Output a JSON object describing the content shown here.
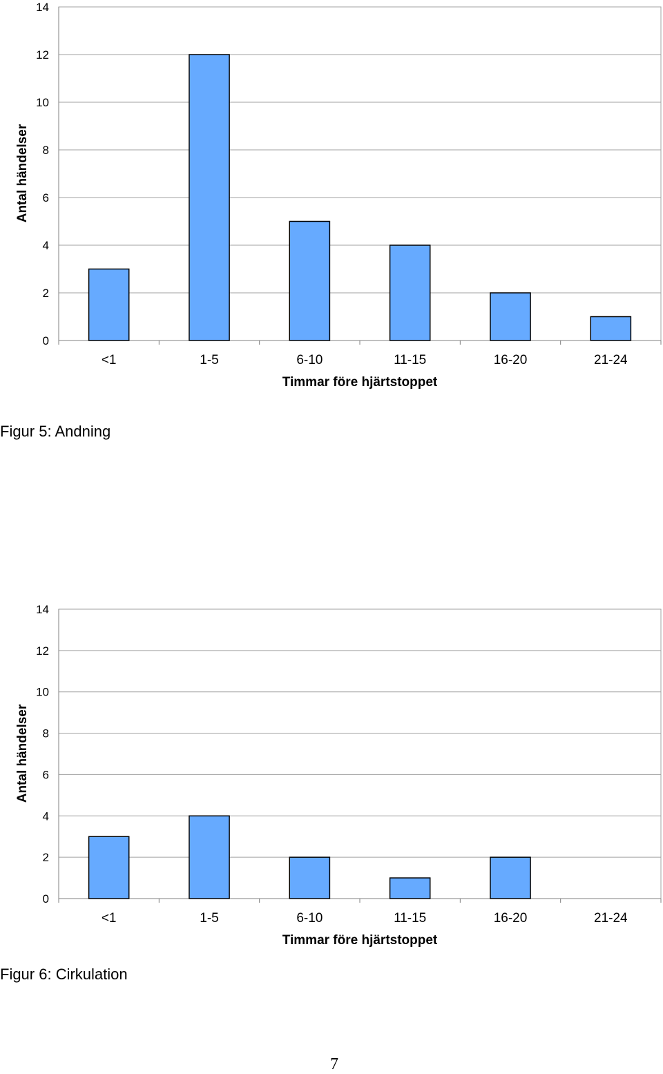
{
  "chart_data": [
    {
      "type": "bar",
      "categories": [
        "<1",
        "1-5",
        "6-10",
        "11-15",
        "16-20",
        "21-24"
      ],
      "values": [
        3,
        12,
        5,
        4,
        2,
        1
      ],
      "xlabel": "Timmar före hjärtstoppet",
      "ylabel": "Antal händelser",
      "ylim": [
        0,
        14
      ],
      "yticks": [
        "0",
        "2",
        "4",
        "6",
        "8",
        "10",
        "12",
        "14"
      ],
      "grid": true,
      "bar_color": "#66AAFF"
    },
    {
      "type": "bar",
      "categories": [
        "<1",
        "1-5",
        "6-10",
        "11-15",
        "16-20",
        "21-24"
      ],
      "values": [
        3,
        4,
        2,
        1,
        2,
        0
      ],
      "xlabel": "Timmar före hjärtstoppet",
      "ylabel": "Antal händelser",
      "ylim": [
        0,
        14
      ],
      "yticks": [
        "0",
        "2",
        "4",
        "6",
        "8",
        "10",
        "12",
        "14"
      ],
      "grid": true,
      "bar_color": "#66AAFF"
    }
  ],
  "captions": {
    "fig5_label": "Figur 5",
    "fig5_text": ": Andning",
    "fig6_label": "Figur 6",
    "fig6_text": ": Cirkulation"
  },
  "page_number": "7"
}
